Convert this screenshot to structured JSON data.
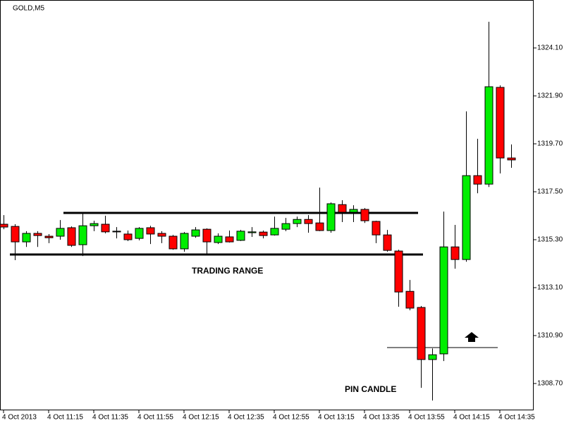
{
  "chart_data": {
    "type": "candlestick",
    "title": "GOLD,M5",
    "annotations": [
      "TRADING RANGE",
      "PIN CANDLE"
    ],
    "levels": [
      1316.53,
      1314.62,
      1310.35
    ],
    "up_color": "#00ee00",
    "down_color": "#ff0000",
    "categories": [
      "4 Oct 2013",
      null,
      null,
      null,
      "4 Oct 11:15",
      null,
      null,
      null,
      "4 Oct 11:35",
      null,
      null,
      null,
      "4 Oct 11:55",
      null,
      null,
      null,
      "4 Oct 12:15",
      null,
      null,
      null,
      "4 Oct 12:35",
      null,
      null,
      null,
      "4 Oct 12:55",
      null,
      null,
      null,
      "4 Oct 13:15",
      null,
      null,
      null,
      "4 Oct 13:35",
      null,
      null,
      null,
      "4 Oct 13:55",
      null,
      null,
      null,
      "4 Oct 14:15",
      null,
      null,
      null,
      "4 Oct 14:35",
      null
    ],
    "open": [
      1316.01,
      1315.91,
      1315.2,
      1315.59,
      1315.46,
      1315.46,
      1315.85,
      1315.07,
      1315.94,
      1316.01,
      1315.69,
      1315.56,
      1315.36,
      1315.85,
      1315.59,
      1315.46,
      1314.88,
      1315.46,
      1315.78,
      1315.17,
      1315.43,
      1315.27,
      1315.62,
      1315.65,
      1315.52,
      1315.78,
      1316.04,
      1316.23,
      1316.07,
      1315.72,
      1316.91,
      1316.56,
      1316.69,
      1316.14,
      1315.52,
      1314.78,
      1312.93,
      1312.19,
      1309.8,
      1310.06,
      1314.97,
      1314.39,
      1318.24,
      1317.85,
      1322.29,
      1319.05
    ],
    "high": [
      1316.43,
      1316.01,
      1315.69,
      1315.69,
      1315.56,
      1316.2,
      1315.91,
      1316.49,
      1316.17,
      1316.4,
      1315.88,
      1315.72,
      1315.88,
      1315.94,
      1315.69,
      1315.52,
      1315.65,
      1315.88,
      1315.82,
      1315.59,
      1315.72,
      1315.75,
      1315.88,
      1315.72,
      1316.36,
      1316.3,
      1316.36,
      1316.43,
      1317.69,
      1317.01,
      1317.11,
      1316.88,
      1316.75,
      1316.17,
      1315.75,
      1314.84,
      1313.45,
      1312.26,
      1310.31,
      1316.59,
      1315.98,
      1321.19,
      1319.93,
      1325.3,
      1322.38,
      1319.67
    ],
    "low": [
      1315.78,
      1314.36,
      1314.97,
      1314.97,
      1315.14,
      1315.3,
      1314.97,
      1314.55,
      1315.69,
      1315.59,
      1315.36,
      1315.24,
      1315.27,
      1315.1,
      1315.14,
      1314.84,
      1314.75,
      1315.39,
      1314.58,
      1315.1,
      1315.17,
      1315.24,
      1315.43,
      1315.36,
      1315.49,
      1315.69,
      1315.88,
      1315.62,
      1315.69,
      1315.62,
      1316.11,
      1316.11,
      1316.07,
      1315.14,
      1314.75,
      1312.22,
      1312.06,
      1308.5,
      1307.92,
      1309.73,
      1313.97,
      1314.29,
      1317.43,
      1317.72,
      1318.34,
      1318.6
    ],
    "close": [
      1315.88,
      1315.2,
      1315.59,
      1315.49,
      1315.39,
      1315.82,
      1315.04,
      1315.94,
      1316.04,
      1315.66,
      1315.66,
      1315.3,
      1315.82,
      1315.56,
      1315.46,
      1314.88,
      1315.59,
      1315.75,
      1315.2,
      1315.46,
      1315.2,
      1315.69,
      1315.66,
      1315.49,
      1315.82,
      1316.04,
      1316.23,
      1316.04,
      1315.72,
      1316.95,
      1316.56,
      1316.69,
      1316.17,
      1315.52,
      1314.81,
      1312.9,
      1312.16,
      1309.8,
      1310.02,
      1314.97,
      1314.39,
      1318.24,
      1317.85,
      1322.32,
      1319.05,
      1318.96
    ],
    "ylim": [
      1307.47,
      1326.3
    ],
    "yticks": [
      {
        "value": 1324.1,
        "label": "1324.10"
      },
      {
        "value": 1321.9,
        "label": "1321.90"
      },
      {
        "value": 1319.7,
        "label": "1319.70"
      },
      {
        "value": 1317.5,
        "label": "1317.50"
      },
      {
        "value": 1315.3,
        "label": "1315.30"
      },
      {
        "value": 1313.1,
        "label": "1313.10"
      },
      {
        "value": 1310.9,
        "label": "1310.90"
      },
      {
        "value": 1308.7,
        "label": "1308.70"
      }
    ]
  }
}
